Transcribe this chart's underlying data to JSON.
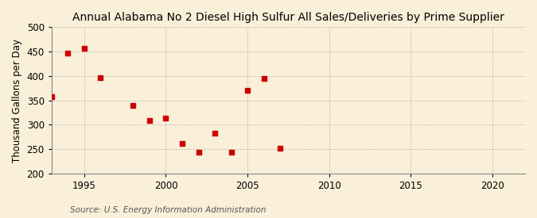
{
  "title": "Annual Alabama No 2 Diesel High Sulfur All Sales/Deliveries by Prime Supplier",
  "ylabel": "Thousand Gallons per Day",
  "source": "Source: U.S. Energy Information Administration",
  "background_color": "#faefd8",
  "x_data": [
    1993,
    1994,
    1995,
    1996,
    1998,
    1999,
    2000,
    2001,
    2002,
    2003,
    2004,
    2005,
    2006,
    2007
  ],
  "y_data": [
    357,
    447,
    457,
    396,
    340,
    308,
    313,
    262,
    244,
    283,
    244,
    371,
    394,
    251
  ],
  "marker_color": "#cc0000",
  "marker_size": 25,
  "xlim": [
    1993,
    2022
  ],
  "ylim": [
    200,
    500
  ],
  "xticks": [
    1995,
    2000,
    2005,
    2010,
    2015,
    2020
  ],
  "yticks": [
    200,
    250,
    300,
    350,
    400,
    450,
    500
  ],
  "title_fontsize": 10,
  "label_fontsize": 8.5,
  "tick_fontsize": 8.5,
  "source_fontsize": 7.5
}
